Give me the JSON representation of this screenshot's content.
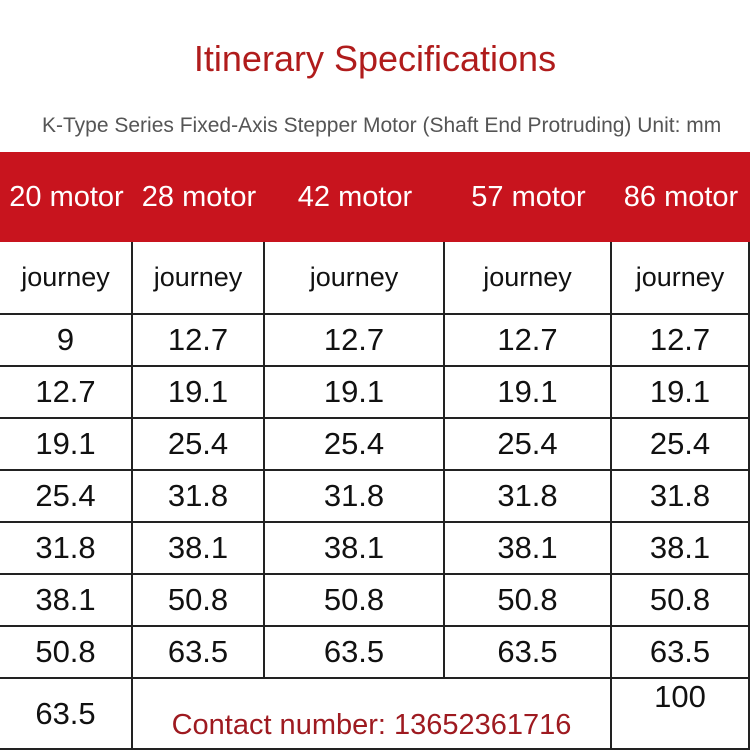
{
  "header": {
    "title": "Itinerary Specifications",
    "subtitle": "K-Type Series Fixed-Axis Stepper Motor (Shaft End Protruding) Unit: mm"
  },
  "table": {
    "columns": [
      "20 motor",
      "28 motor",
      "42 motor",
      "57 motor",
      "86 motor"
    ],
    "subheader": [
      "journey",
      "journey",
      "journey",
      "journey",
      "journey"
    ],
    "rows": [
      [
        "9",
        "12.7",
        "12.7",
        "12.7",
        "12.7"
      ],
      [
        "12.7",
        "19.1",
        "19.1",
        "19.1",
        "19.1"
      ],
      [
        "19.1",
        "25.4",
        "25.4",
        "25.4",
        "25.4"
      ],
      [
        "25.4",
        "31.8",
        "31.8",
        "31.8",
        "31.8"
      ],
      [
        "31.8",
        "38.1",
        "38.1",
        "38.1",
        "38.1"
      ],
      [
        "38.1",
        "50.8",
        "50.8",
        "50.8",
        "50.8"
      ],
      [
        "50.8",
        "63.5",
        "63.5",
        "63.5",
        "63.5"
      ]
    ],
    "last_row": {
      "first": "63.5",
      "contact": "Contact number: 13652361716",
      "last": "100"
    }
  }
}
